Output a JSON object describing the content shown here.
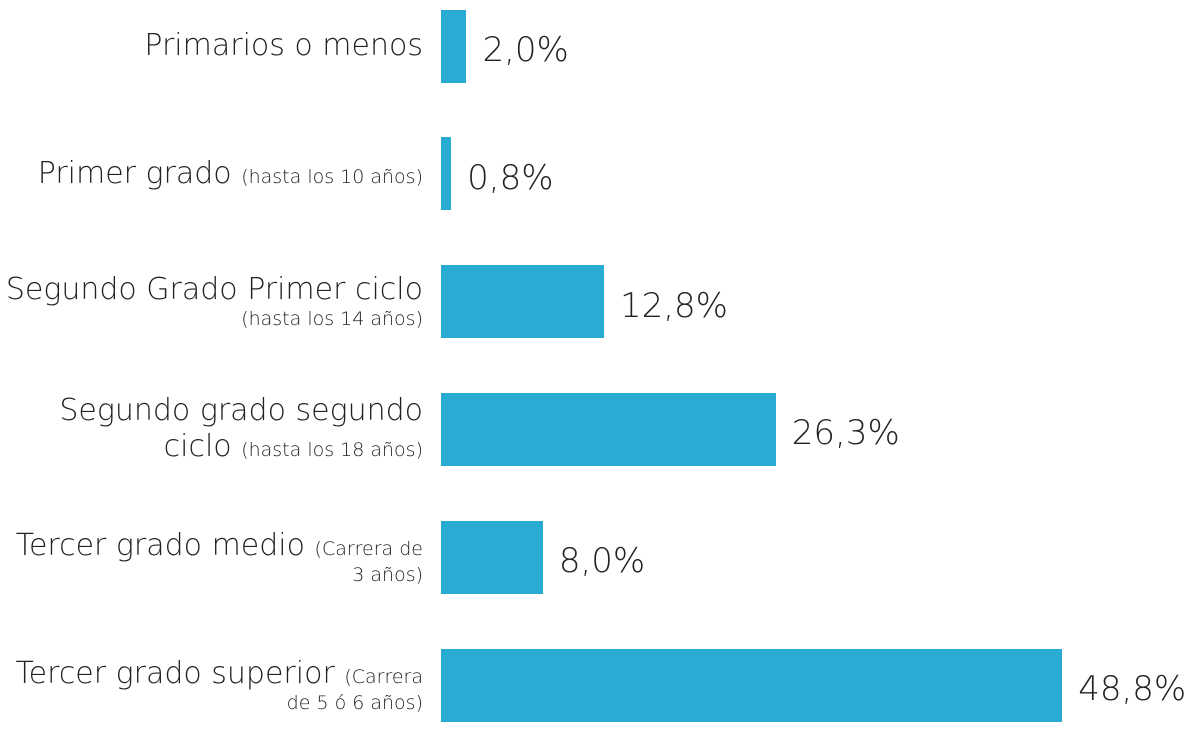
{
  "chart_data": {
    "type": "bar",
    "orientation": "horizontal",
    "color": "#29acd4",
    "categories": [
      "Primarios o menos",
      "Primer grado (hasta los 10 años)",
      "Segundo Grado Primer ciclo (hasta los 14 años)",
      "Segundo grado segundo ciclo (hasta los 18 años)",
      "Tercer grado medio (Carrera de 3 años)",
      "Tercer grado superior (Carrera de 5 ó 6 años)"
    ],
    "values": [
      2.0,
      0.8,
      12.8,
      26.3,
      8.0,
      48.8
    ],
    "value_labels": [
      "2,0%",
      "0,8%",
      "12,8%",
      "26,3%",
      "8,0%",
      "48,8%"
    ]
  }
}
